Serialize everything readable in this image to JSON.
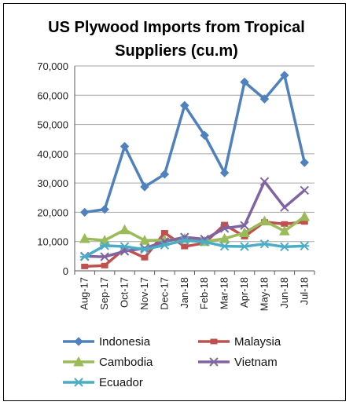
{
  "chart_data": {
    "type": "line",
    "title_lines": [
      "US Plywood Imports from Tropical",
      "Suppliers (cu.m)"
    ],
    "categories": [
      "Aug-17",
      "Sep-17",
      "Oct-17",
      "Nov-17",
      "Dec-17",
      "Jan-18",
      "Feb-18",
      "Mar-18",
      "Apr-18",
      "May-18",
      "Jun-18",
      "Jul-18"
    ],
    "ylim": [
      0,
      70000
    ],
    "yticks": [
      "0",
      "10,000",
      "20,000",
      "30,000",
      "40,000",
      "50,000",
      "60,000",
      "70,000"
    ],
    "ytick_values": [
      0,
      10000,
      20000,
      30000,
      40000,
      50000,
      60000,
      70000
    ],
    "grid": true,
    "legend_position": "bottom",
    "series": [
      {
        "name": "Indonesia",
        "color": "#4F81BD",
        "marker": "diamond",
        "values": [
          20000,
          21000,
          42500,
          28700,
          33000,
          56500,
          46300,
          33500,
          64500,
          58700,
          66800,
          37000
        ]
      },
      {
        "name": "Malaysia",
        "color": "#C0504D",
        "marker": "square",
        "values": [
          1500,
          1800,
          7600,
          4500,
          13000,
          8300,
          9500,
          15800,
          11700,
          16700,
          16000,
          16700
        ]
      },
      {
        "name": "Cambodia",
        "color": "#9BBB59",
        "marker": "triangle",
        "values": [
          11000,
          10400,
          14000,
          10400,
          10500,
          11000,
          10000,
          11000,
          13000,
          17000,
          13600,
          18500
        ]
      },
      {
        "name": "Vietnam",
        "color": "#8064A2",
        "marker": "x",
        "values": [
          5000,
          4800,
          6700,
          7700,
          10000,
          11500,
          10800,
          14500,
          15500,
          30500,
          21700,
          27500
        ]
      },
      {
        "name": "Ecuador",
        "color": "#4BACC6",
        "marker": "asterisk",
        "values": [
          4800,
          8600,
          8300,
          7300,
          8800,
          10400,
          9900,
          8400,
          8300,
          9200,
          8200,
          8500
        ]
      }
    ]
  }
}
